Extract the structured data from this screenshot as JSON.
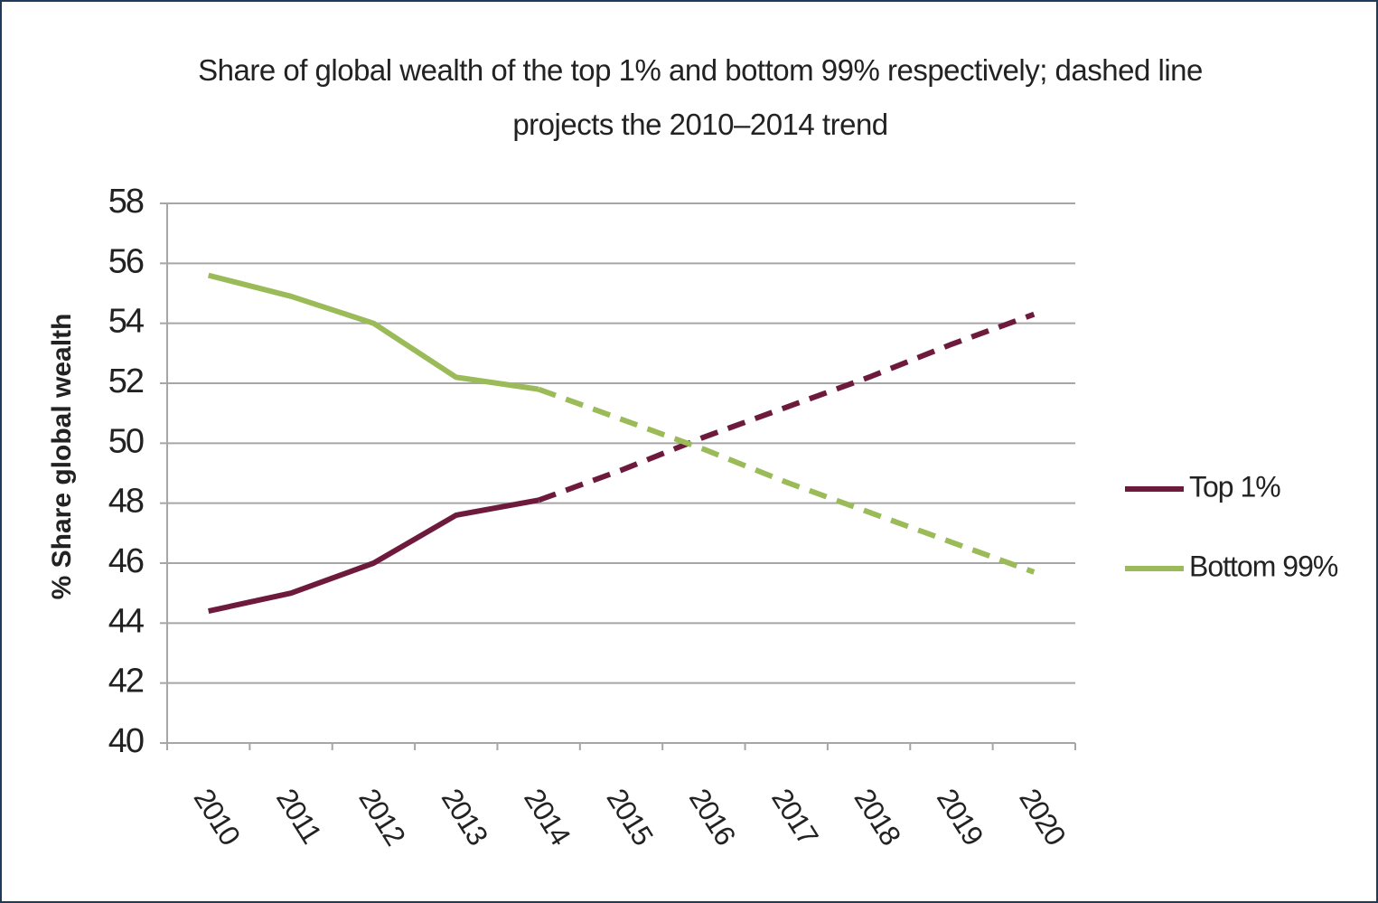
{
  "chart_data": {
    "type": "line",
    "title": "Share of global wealth of the top 1% and bottom 99% respectively; dashed line projects the 2010–2014 trend",
    "y_label": "% Share global wealth",
    "categories": [
      "2010",
      "2011",
      "2012",
      "2013",
      "2014",
      "2015",
      "2016",
      "2017",
      "2018",
      "2019",
      "2020"
    ],
    "series": [
      {
        "name": "Top 1%",
        "color": "#6e1a3d",
        "values": [
          44.4,
          45.0,
          46.0,
          47.6,
          48.1,
          49.1,
          50.2,
          51.2,
          52.2,
          53.3,
          54.3
        ]
      },
      {
        "name": "Bottom 99%",
        "color": "#9bbb59",
        "values": [
          55.6,
          54.9,
          54.0,
          52.2,
          51.8,
          50.8,
          49.8,
          48.7,
          47.7,
          46.7,
          45.7
        ]
      }
    ],
    "dashed_from": "2014",
    "ylim": [
      40,
      58
    ],
    "yticks": [
      40,
      42,
      44,
      46,
      48,
      50,
      52,
      54,
      56,
      58
    ],
    "grid": true,
    "legend": "right"
  }
}
